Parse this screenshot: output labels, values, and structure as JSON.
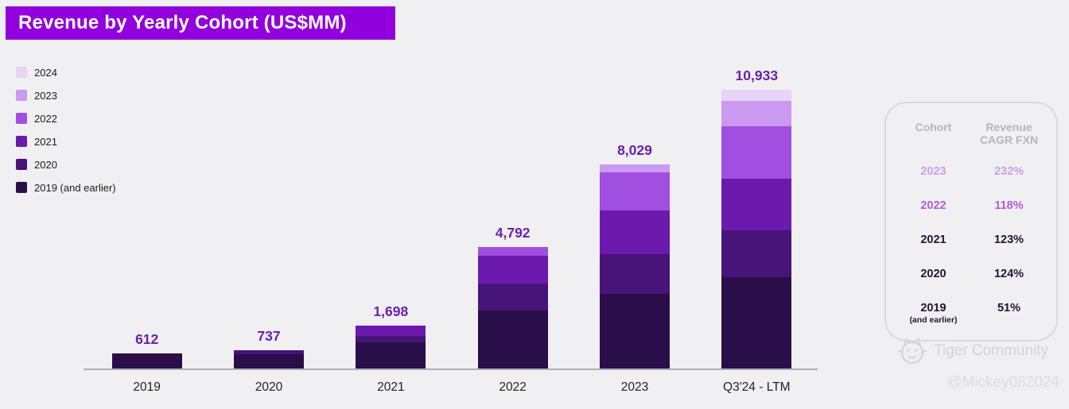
{
  "header": {
    "title": "Revenue by Yearly Cohort (US$MM)"
  },
  "legend": [
    {
      "label": "2024",
      "color": "#e7d4f8"
    },
    {
      "label": "2023",
      "color": "#c99af0"
    },
    {
      "label": "2022",
      "color": "#a14fe0"
    },
    {
      "label": "2021",
      "color": "#6b1aad"
    },
    {
      "label": "2020",
      "color": "#471479"
    },
    {
      "label": "2019 (and earlier)",
      "color": "#2a0e4a"
    }
  ],
  "chart_data": {
    "type": "bar",
    "stacked": true,
    "title": "Revenue by Yearly Cohort (US$MM)",
    "categories": [
      "2019",
      "2020",
      "2021",
      "2022",
      "2023",
      "Q3'24 - LTM"
    ],
    "totals": [
      612,
      737,
      1698,
      4792,
      8029,
      10933
    ],
    "totals_labels": [
      "612",
      "737",
      "1,698",
      "4,792",
      "8,029",
      "10,933"
    ],
    "series": [
      {
        "name": "2019 (and earlier)",
        "color": "#2a0e4a",
        "values": [
          612,
          600,
          1050,
          2300,
          2950,
          3600
        ]
      },
      {
        "name": "2020",
        "color": "#471479",
        "values": [
          0,
          137,
          250,
          1050,
          1550,
          1850
        ]
      },
      {
        "name": "2021",
        "color": "#6b1aad",
        "values": [
          0,
          0,
          398,
          1100,
          1700,
          2000
        ]
      },
      {
        "name": "2022",
        "color": "#a14fe0",
        "values": [
          0,
          0,
          0,
          342,
          1520,
          2050
        ]
      },
      {
        "name": "2023",
        "color": "#c99af0",
        "values": [
          0,
          0,
          0,
          0,
          309,
          1000
        ]
      },
      {
        "name": "2024",
        "color": "#e7d4f8",
        "values": [
          0,
          0,
          0,
          0,
          0,
          433
        ]
      }
    ],
    "ylim": [
      0,
      11000
    ],
    "grid": false,
    "legend_position": "top-left"
  },
  "table": {
    "header": {
      "cohort": "Cohort",
      "revenue_line1": "Revenue",
      "revenue_line2": "CAGR FXN"
    },
    "rows": [
      {
        "cohort": "2023",
        "sub": "",
        "value": "232%",
        "color": "#c9a0ea"
      },
      {
        "cohort": "2022",
        "sub": "",
        "value": "118%",
        "color": "#ab5fd6"
      },
      {
        "cohort": "2021",
        "sub": "",
        "value": "123%",
        "color": "#241433"
      },
      {
        "cohort": "2020",
        "sub": "",
        "value": "124%",
        "color": "#241433"
      },
      {
        "cohort": "2019",
        "sub": "(and earlier)",
        "value": "51%",
        "color": "#241433"
      }
    ]
  },
  "watermark": {
    "brand": "Tiger Community",
    "handle": "@Mickey082024"
  }
}
